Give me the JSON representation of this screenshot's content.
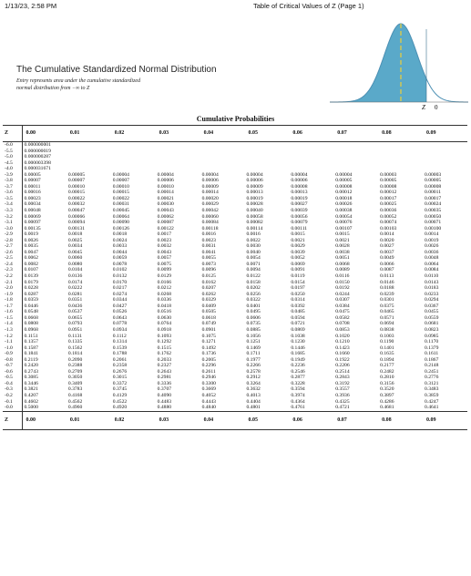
{
  "header": {
    "left": "1/13/23, 2:58 PM",
    "center": "Table of Critical Values of Z (Page 1)"
  },
  "title": "The Cumulative Standardized Normal Distribution",
  "description": {
    "line1": "Entry represents area under the cumulative standardized",
    "line2": "normal distribution from −∞ to Z"
  },
  "figure": {
    "label_z": "Z",
    "label_0": "0",
    "fill_color": "#5aa9c9",
    "curve_color": "#4b8fb3",
    "mean_line_color": "#d9c94c"
  },
  "table_title": "Cumulative Probabilities",
  "columns": [
    "Z",
    "0.00",
    "0.01",
    "0.02",
    "0.03",
    "0.04",
    "0.05",
    "0.06",
    "0.07",
    "0.08",
    "0.09"
  ],
  "rows": [
    [
      "-6.0",
      "0.000000001",
      "",
      "",
      "",
      "",
      "",
      "",
      "",
      "",
      ""
    ],
    [
      "-5.5",
      "0.000000019",
      "",
      "",
      "",
      "",
      "",
      "",
      "",
      "",
      ""
    ],
    [
      "-5.0",
      "0.000000287",
      "",
      "",
      "",
      "",
      "",
      "",
      "",
      "",
      ""
    ],
    [
      "-4.5",
      "0.000003398",
      "",
      "",
      "",
      "",
      "",
      "",
      "",
      "",
      ""
    ],
    [
      "-4.0",
      "0.000031671",
      "",
      "",
      "",
      "",
      "",
      "",
      "",
      "",
      ""
    ],
    [
      "-3.9",
      "0.00005",
      "0.00005",
      "0.00004",
      "0.00004",
      "0.00004",
      "0.00004",
      "0.00004",
      "0.00004",
      "0.00003",
      "0.00003"
    ],
    [
      "-3.8",
      "0.00007",
      "0.00007",
      "0.00007",
      "0.00006",
      "0.00006",
      "0.00006",
      "0.00006",
      "0.00005",
      "0.00005",
      "0.00005"
    ],
    [
      "-3.7",
      "0.00011",
      "0.00010",
      "0.00010",
      "0.00010",
      "0.00009",
      "0.00009",
      "0.00008",
      "0.00008",
      "0.00008",
      "0.00008"
    ],
    [
      "-3.6",
      "0.00016",
      "0.00015",
      "0.00015",
      "0.00014",
      "0.00014",
      "0.00013",
      "0.00013",
      "0.00012",
      "0.00012",
      "0.00011"
    ],
    [
      "-3.5",
      "0.00023",
      "0.00022",
      "0.00022",
      "0.00021",
      "0.00020",
      "0.00019",
      "0.00019",
      "0.00018",
      "0.00017",
      "0.00017"
    ],
    [
      "-3.4",
      "0.00034",
      "0.00032",
      "0.00031",
      "0.00030",
      "0.00029",
      "0.00028",
      "0.00027",
      "0.00026",
      "0.00025",
      "0.00024"
    ],
    [
      "-3.3",
      "0.00048",
      "0.00047",
      "0.00045",
      "0.00043",
      "0.00042",
      "0.00040",
      "0.00039",
      "0.00038",
      "0.00036",
      "0.00035"
    ],
    [
      "-3.2",
      "0.00069",
      "0.00066",
      "0.00064",
      "0.00062",
      "0.00060",
      "0.00058",
      "0.00056",
      "0.00054",
      "0.00052",
      "0.00050"
    ],
    [
      "-3.1",
      "0.00097",
      "0.00094",
      "0.00090",
      "0.00087",
      "0.00084",
      "0.00082",
      "0.00079",
      "0.00076",
      "0.00074",
      "0.00071"
    ],
    [
      "-3.0",
      "0.00135",
      "0.00131",
      "0.00126",
      "0.00122",
      "0.00118",
      "0.00114",
      "0.00111",
      "0.00107",
      "0.00103",
      "0.00100"
    ],
    [
      "-2.9",
      "0.0019",
      "0.0018",
      "0.0018",
      "0.0017",
      "0.0016",
      "0.0016",
      "0.0015",
      "0.0015",
      "0.0014",
      "0.0014"
    ],
    [
      "-2.8",
      "0.0026",
      "0.0025",
      "0.0024",
      "0.0023",
      "0.0023",
      "0.0022",
      "0.0021",
      "0.0021",
      "0.0020",
      "0.0019"
    ],
    [
      "-2.7",
      "0.0035",
      "0.0034",
      "0.0033",
      "0.0032",
      "0.0031",
      "0.0030",
      "0.0029",
      "0.0028",
      "0.0027",
      "0.0026"
    ],
    [
      "-2.6",
      "0.0047",
      "0.0045",
      "0.0044",
      "0.0043",
      "0.0041",
      "0.0040",
      "0.0039",
      "0.0038",
      "0.0037",
      "0.0036"
    ],
    [
      "-2.5",
      "0.0062",
      "0.0060",
      "0.0059",
      "0.0057",
      "0.0055",
      "0.0054",
      "0.0052",
      "0.0051",
      "0.0049",
      "0.0048"
    ],
    [
      "-2.4",
      "0.0082",
      "0.0080",
      "0.0078",
      "0.0075",
      "0.0073",
      "0.0071",
      "0.0069",
      "0.0068",
      "0.0066",
      "0.0064"
    ],
    [
      "-2.3",
      "0.0107",
      "0.0104",
      "0.0102",
      "0.0099",
      "0.0096",
      "0.0094",
      "0.0091",
      "0.0089",
      "0.0087",
      "0.0084"
    ],
    [
      "-2.2",
      "0.0139",
      "0.0136",
      "0.0132",
      "0.0129",
      "0.0125",
      "0.0122",
      "0.0119",
      "0.0116",
      "0.0113",
      "0.0110"
    ],
    [
      "-2.1",
      "0.0179",
      "0.0174",
      "0.0170",
      "0.0166",
      "0.0162",
      "0.0158",
      "0.0154",
      "0.0150",
      "0.0146",
      "0.0143"
    ],
    [
      "-2.0",
      "0.0228",
      "0.0222",
      "0.0217",
      "0.0212",
      "0.0207",
      "0.0202",
      "0.0197",
      "0.0192",
      "0.0188",
      "0.0183"
    ],
    [
      "-1.9",
      "0.0287",
      "0.0281",
      "0.0274",
      "0.0268",
      "0.0262",
      "0.0256",
      "0.0250",
      "0.0244",
      "0.0239",
      "0.0233"
    ],
    [
      "-1.8",
      "0.0359",
      "0.0351",
      "0.0344",
      "0.0336",
      "0.0329",
      "0.0322",
      "0.0314",
      "0.0307",
      "0.0301",
      "0.0294"
    ],
    [
      "-1.7",
      "0.0446",
      "0.0436",
      "0.0427",
      "0.0418",
      "0.0409",
      "0.0401",
      "0.0392",
      "0.0384",
      "0.0375",
      "0.0367"
    ],
    [
      "-1.6",
      "0.0548",
      "0.0537",
      "0.0526",
      "0.0516",
      "0.0505",
      "0.0495",
      "0.0485",
      "0.0475",
      "0.0465",
      "0.0455"
    ],
    [
      "-1.5",
      "0.0668",
      "0.0655",
      "0.0643",
      "0.0630",
      "0.0618",
      "0.0606",
      "0.0594",
      "0.0582",
      "0.0571",
      "0.0559"
    ],
    [
      "-1.4",
      "0.0808",
      "0.0793",
      "0.0778",
      "0.0764",
      "0.0749",
      "0.0735",
      "0.0721",
      "0.0708",
      "0.0694",
      "0.0681"
    ],
    [
      "-1.3",
      "0.0968",
      "0.0951",
      "0.0934",
      "0.0918",
      "0.0901",
      "0.0885",
      "0.0869",
      "0.0853",
      "0.0838",
      "0.0823"
    ],
    [
      "-1.2",
      "0.1151",
      "0.1131",
      "0.1112",
      "0.1093",
      "0.1075",
      "0.1056",
      "0.1038",
      "0.1020",
      "0.1003",
      "0.0985"
    ],
    [
      "-1.1",
      "0.1357",
      "0.1335",
      "0.1314",
      "0.1292",
      "0.1271",
      "0.1251",
      "0.1230",
      "0.1210",
      "0.1190",
      "0.1170"
    ],
    [
      "-1.0",
      "0.1587",
      "0.1562",
      "0.1539",
      "0.1515",
      "0.1492",
      "0.1469",
      "0.1446",
      "0.1423",
      "0.1401",
      "0.1379"
    ],
    [
      "-0.9",
      "0.1841",
      "0.1814",
      "0.1788",
      "0.1762",
      "0.1736",
      "0.1711",
      "0.1685",
      "0.1660",
      "0.1635",
      "0.1611"
    ],
    [
      "-0.8",
      "0.2119",
      "0.2090",
      "0.2061",
      "0.2033",
      "0.2005",
      "0.1977",
      "0.1949",
      "0.1922",
      "0.1894",
      "0.1867"
    ],
    [
      "-0.7",
      "0.2420",
      "0.2388",
      "0.2358",
      "0.2327",
      "0.2296",
      "0.2266",
      "0.2236",
      "0.2206",
      "0.2177",
      "0.2148"
    ],
    [
      "-0.6",
      "0.2743",
      "0.2709",
      "0.2676",
      "0.2643",
      "0.2611",
      "0.2578",
      "0.2546",
      "0.2514",
      "0.2482",
      "0.2451"
    ],
    [
      "-0.5",
      "0.3085",
      "0.3050",
      "0.3015",
      "0.2981",
      "0.2946",
      "0.2912",
      "0.2877",
      "0.2843",
      "0.2810",
      "0.2776"
    ],
    [
      "-0.4",
      "0.3446",
      "0.3409",
      "0.3372",
      "0.3336",
      "0.3300",
      "0.3264",
      "0.3228",
      "0.3192",
      "0.3156",
      "0.3121"
    ],
    [
      "-0.3",
      "0.3821",
      "0.3783",
      "0.3745",
      "0.3707",
      "0.3669",
      "0.3632",
      "0.3594",
      "0.3557",
      "0.3520",
      "0.3483"
    ],
    [
      "-0.2",
      "0.4207",
      "0.4168",
      "0.4129",
      "0.4090",
      "0.4052",
      "0.4013",
      "0.3974",
      "0.3936",
      "0.3897",
      "0.3859"
    ],
    [
      "-0.1",
      "0.4602",
      "0.4562",
      "0.4522",
      "0.4483",
      "0.4443",
      "0.4404",
      "0.4364",
      "0.4325",
      "0.4286",
      "0.4247"
    ],
    [
      "-0.0",
      "0.5000",
      "0.4960",
      "0.4920",
      "0.4880",
      "0.4840",
      "0.4801",
      "0.4761",
      "0.4721",
      "0.4681",
      "0.4641"
    ]
  ]
}
